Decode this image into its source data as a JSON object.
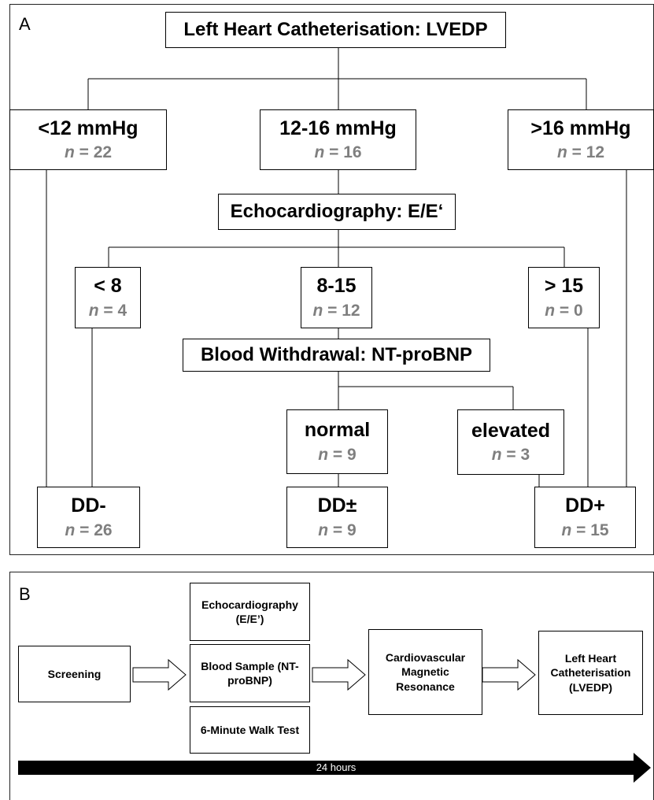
{
  "panel_a": {
    "letter": "A",
    "root": "Left Heart Catheterisation: LVEDP",
    "lvedp_groups": [
      {
        "label": "<12 mmHg",
        "n": "22"
      },
      {
        "label": "12-16 mmHg",
        "n": "16"
      },
      {
        "label": ">16 mmHg",
        "n": "12"
      }
    ],
    "echo_header": "Echocardiography: E/E‘",
    "echo_groups": [
      {
        "label": "< 8",
        "n": "4"
      },
      {
        "label": "8-15",
        "n": "12"
      },
      {
        "label": "> 15",
        "n": "0"
      }
    ],
    "blood_header": "Blood Withdrawal: NT-proBNP",
    "bnp_groups": [
      {
        "label": "normal",
        "n": "9"
      },
      {
        "label": "elevated",
        "n": "3"
      }
    ],
    "outcomes": [
      {
        "label": "DD-",
        "n": "26"
      },
      {
        "label": "DD±",
        "n": "9"
      },
      {
        "label": "DD+",
        "n": "15"
      }
    ],
    "n_prefix": "n",
    "equals": " = "
  },
  "panel_b": {
    "letter": "B",
    "screening": "Screening",
    "echo": "Echocardiography (E/E’)",
    "blood": "Blood Sample (NT-proBNP)",
    "walk": "6-Minute Walk Test",
    "cmr": "Cardiovascular Magnetic Resonance",
    "lhc": "Left Heart Catheterisation (LVEDP)",
    "timeline": "24 hours"
  }
}
